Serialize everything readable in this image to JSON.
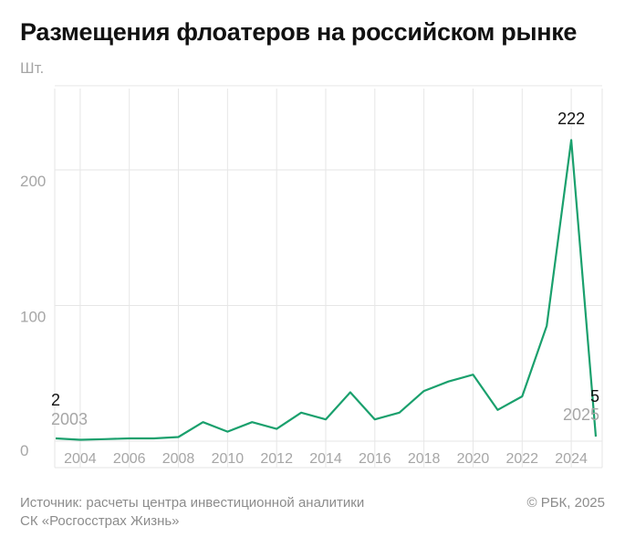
{
  "colors": {
    "line": "#1aa06d",
    "grid": "#e6e6e6",
    "axis_text": "#a6a6a6",
    "title": "#111111",
    "annotation": "#111111"
  },
  "chart_data": {
    "type": "line",
    "title": "Размещения флоатеров на российском рынке",
    "ylabel": "Шт.",
    "xlabel": "",
    "x": [
      2003,
      2004,
      2005,
      2006,
      2007,
      2008,
      2009,
      2010,
      2011,
      2012,
      2013,
      2014,
      2015,
      2016,
      2017,
      2018,
      2019,
      2020,
      2021,
      2022,
      2023,
      2024,
      2025
    ],
    "values": [
      2,
      1,
      1.5,
      2,
      2,
      3,
      14,
      7,
      14,
      9,
      21,
      16,
      36,
      16,
      21,
      37,
      44,
      49,
      23,
      33,
      85,
      222,
      5
    ],
    "xlim": [
      2002.8,
      2025.2
    ],
    "ylim": [
      0,
      262
    ],
    "yticks": [
      0,
      100,
      200
    ],
    "ytick_labels": [
      "0",
      "100",
      "200"
    ],
    "xticks": [
      2004,
      2006,
      2008,
      2010,
      2012,
      2014,
      2016,
      2018,
      2020,
      2022,
      2024
    ],
    "xtick_labels": [
      "2004",
      "2006",
      "2008",
      "2010",
      "2012",
      "2014",
      "2016",
      "2018",
      "2020",
      "2022",
      "2024"
    ],
    "grid": true,
    "annotations": [
      {
        "year_label": "2003",
        "value_label": "2"
      },
      {
        "year_label": "",
        "value_label": "222"
      },
      {
        "year_label": "2025",
        "value_label": "5"
      }
    ]
  },
  "footer": {
    "source_line1": "Источник: расчеты центра инвестиционной аналитики",
    "source_line2": "СК «Росгосстрах Жизнь»",
    "copyright": "© РБК, 2025"
  }
}
